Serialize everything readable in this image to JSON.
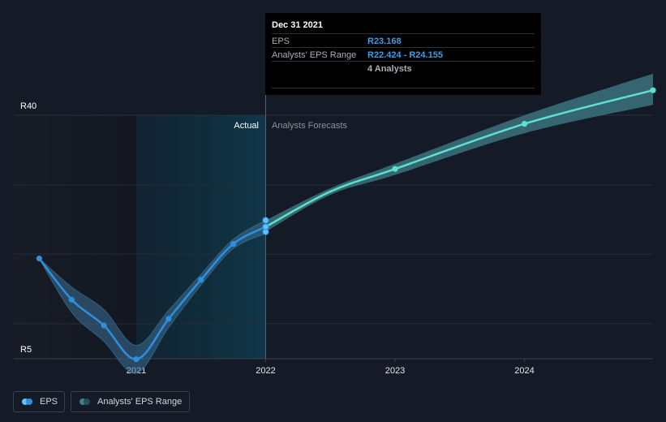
{
  "chart_data": {
    "type": "line",
    "x_ticks": [
      "2021",
      "2022",
      "2023",
      "2024"
    ],
    "y_ticks": [
      "R40",
      "R5"
    ],
    "ylim": [
      5,
      40
    ],
    "section_labels": {
      "actual": "Actual",
      "forecast": "Analysts Forecasts"
    },
    "series": [
      {
        "name": "EPS",
        "color": "#2e8fe0",
        "points": [
          {
            "x": 2020.25,
            "y": 18.4
          },
          {
            "x": 2020.5,
            "y": 12.2
          },
          {
            "x": 2020.75,
            "y": 8.3
          },
          {
            "x": 2021.0,
            "y": 3.2
          },
          {
            "x": 2021.25,
            "y": 9.3
          },
          {
            "x": 2021.5,
            "y": 15.2
          },
          {
            "x": 2021.75,
            "y": 20.6
          },
          {
            "x": 2022.0,
            "y": 23.168
          }
        ]
      },
      {
        "name": "Analysts' EPS Range",
        "color": "#5fe0cf",
        "points": [
          {
            "x": 2022.0,
            "y": 23.168,
            "low": 22.424,
            "high": 24.155
          },
          {
            "x": 2022.5,
            "y": 28.5,
            "low": 28.0,
            "high": 29.0
          },
          {
            "x": 2023.0,
            "y": 31.9,
            "low": 31.0,
            "high": 32.7
          },
          {
            "x": 2024.0,
            "y": 38.7,
            "low": 37.3,
            "high": 40.0
          },
          {
            "x": 2025.0,
            "y": 43.8,
            "low": 41.6,
            "high": 46.3
          }
        ]
      }
    ],
    "extra_markers": [
      {
        "x": 2022.0,
        "y": 22.424
      },
      {
        "x": 2022.0,
        "y": 24.155
      }
    ],
    "grid": true
  },
  "tooltip": {
    "date": "Dec 31 2021",
    "eps_label": "EPS",
    "eps_value": "R23.168",
    "range_label": "Analysts' EPS Range",
    "range_value": "R22.424 - R24.155",
    "analysts": "4 Analysts"
  },
  "legend": {
    "eps": "EPS",
    "range": "Analysts' EPS Range",
    "eps_colors": [
      "#5fc3f5",
      "#2e8fe0"
    ],
    "range_colors": [
      "#3f7f8a",
      "#2a4f5c"
    ]
  }
}
